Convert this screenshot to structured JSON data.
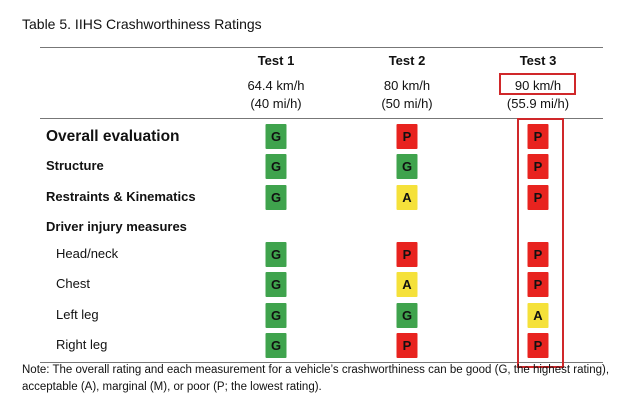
{
  "title": "Table 5. IIHS Crashworthiness Ratings",
  "columns": [
    {
      "name": "Test 1",
      "speed_km": "64.4 km/h",
      "speed_mi": "(40 mi/h)"
    },
    {
      "name": "Test 2",
      "speed_km": "80 km/h",
      "speed_mi": "(50 mi/h)"
    },
    {
      "name": "Test 3",
      "speed_km": "90 km/h",
      "speed_mi": "(55.9 mi/h)"
    }
  ],
  "rows": [
    {
      "label": "Overall evaluation",
      "ratings": [
        "G",
        "P",
        "P"
      ]
    },
    {
      "label": "Structure",
      "ratings": [
        "G",
        "G",
        "P"
      ]
    },
    {
      "label": "Restraints & Kinematics",
      "ratings": [
        "G",
        "A",
        "P"
      ]
    },
    {
      "label": "Driver injury measures",
      "subrows": [
        {
          "label": "Head/neck",
          "ratings": [
            "G",
            "P",
            "P"
          ]
        },
        {
          "label": "Chest",
          "ratings": [
            "G",
            "A",
            "P"
          ]
        },
        {
          "label": "Left leg",
          "ratings": [
            "G",
            "G",
            "A"
          ]
        },
        {
          "label": "Right leg",
          "ratings": [
            "G",
            "P",
            "P"
          ]
        }
      ]
    }
  ],
  "rating_colors": {
    "G": "#3fa34d",
    "A": "#f5e13a",
    "P": "#e8231f"
  },
  "note": "Note: The overall rating and each measurement for a vehicle’s crashworthiness can be good (G, the highest rating), acceptable (A), marginal (M), or poor (P; the lowest rating)."
}
